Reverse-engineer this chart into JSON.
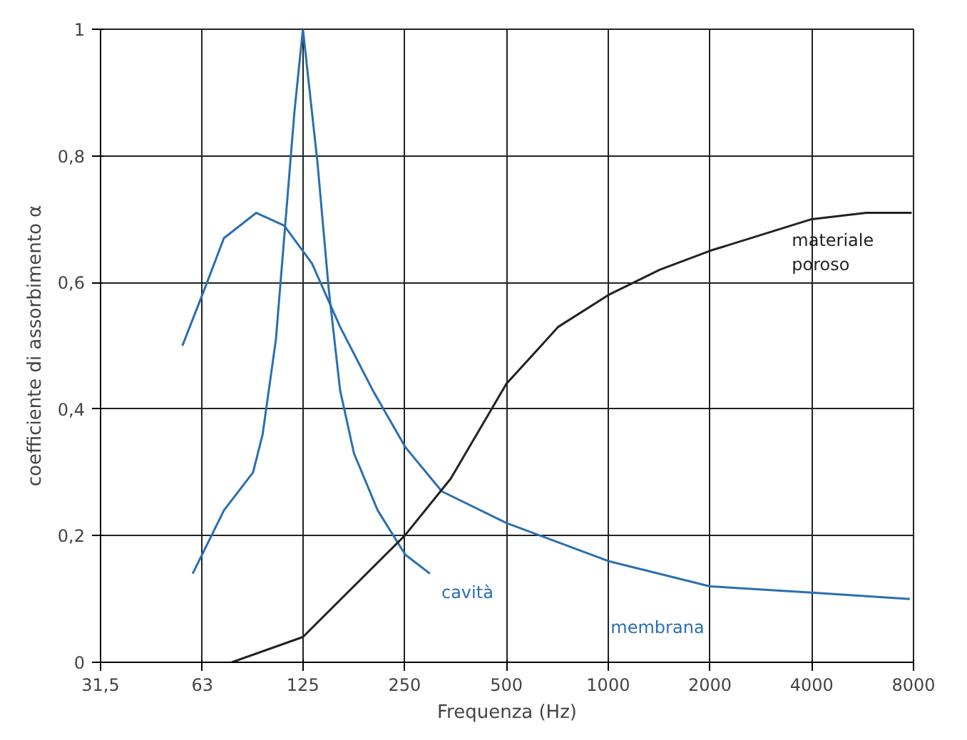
{
  "chart_data": {
    "type": "line",
    "xlabel": "Frequenza (Hz)",
    "ylabel": "coefficiente di assorbimento α",
    "log": "x",
    "grid": true,
    "marker": "none",
    "line_style": "solid",
    "xlim": [
      31.5,
      8000
    ],
    "xticks": [
      {
        "value": 31.5,
        "label": "31,5"
      },
      63,
      125,
      250,
      500,
      1000,
      2000,
      4000,
      8000
    ],
    "ylim": [
      0,
      1
    ],
    "yticks": [
      0,
      {
        "value": 0.2,
        "label": "0,2"
      },
      {
        "value": 0.4,
        "label": "0,4"
      },
      {
        "value": 0.6,
        "label": "0,6"
      },
      {
        "value": 0.8,
        "label": "0,8"
      },
      1
    ],
    "series": [
      {
        "name": "cavità",
        "color": "#2a6fb0",
        "x": [
          59,
          73,
          89,
          95,
          104,
          110,
          118,
          125,
          138,
          149,
          161,
          177,
          208,
          251,
          297
        ],
        "values": [
          0.14,
          0.24,
          0.3,
          0.36,
          0.51,
          0.67,
          0.87,
          1.0,
          0.79,
          0.59,
          0.43,
          0.33,
          0.24,
          0.17,
          0.14
        ]
      },
      {
        "name": "membrana",
        "color": "#2a6fb0",
        "x": [
          55,
          64,
          73,
          91,
          110,
          133,
          161,
          201,
          251,
          322,
          500,
          1000,
          2000,
          4000,
          7800
        ],
        "values": [
          0.5,
          0.59,
          0.67,
          0.71,
          0.69,
          0.63,
          0.53,
          0.43,
          0.34,
          0.27,
          0.22,
          0.16,
          0.12,
          0.11,
          0.1
        ]
      },
      {
        "name": "materiale\nporoso",
        "color": "#222222",
        "x": [
          77,
          125,
          250,
          342,
          500,
          712,
          1000,
          1420,
          2000,
          4000,
          5800,
          7900
        ],
        "values": [
          0.0,
          0.04,
          0.2,
          0.29,
          0.44,
          0.53,
          0.58,
          0.62,
          0.65,
          0.7,
          0.71,
          0.71
        ]
      }
    ]
  }
}
